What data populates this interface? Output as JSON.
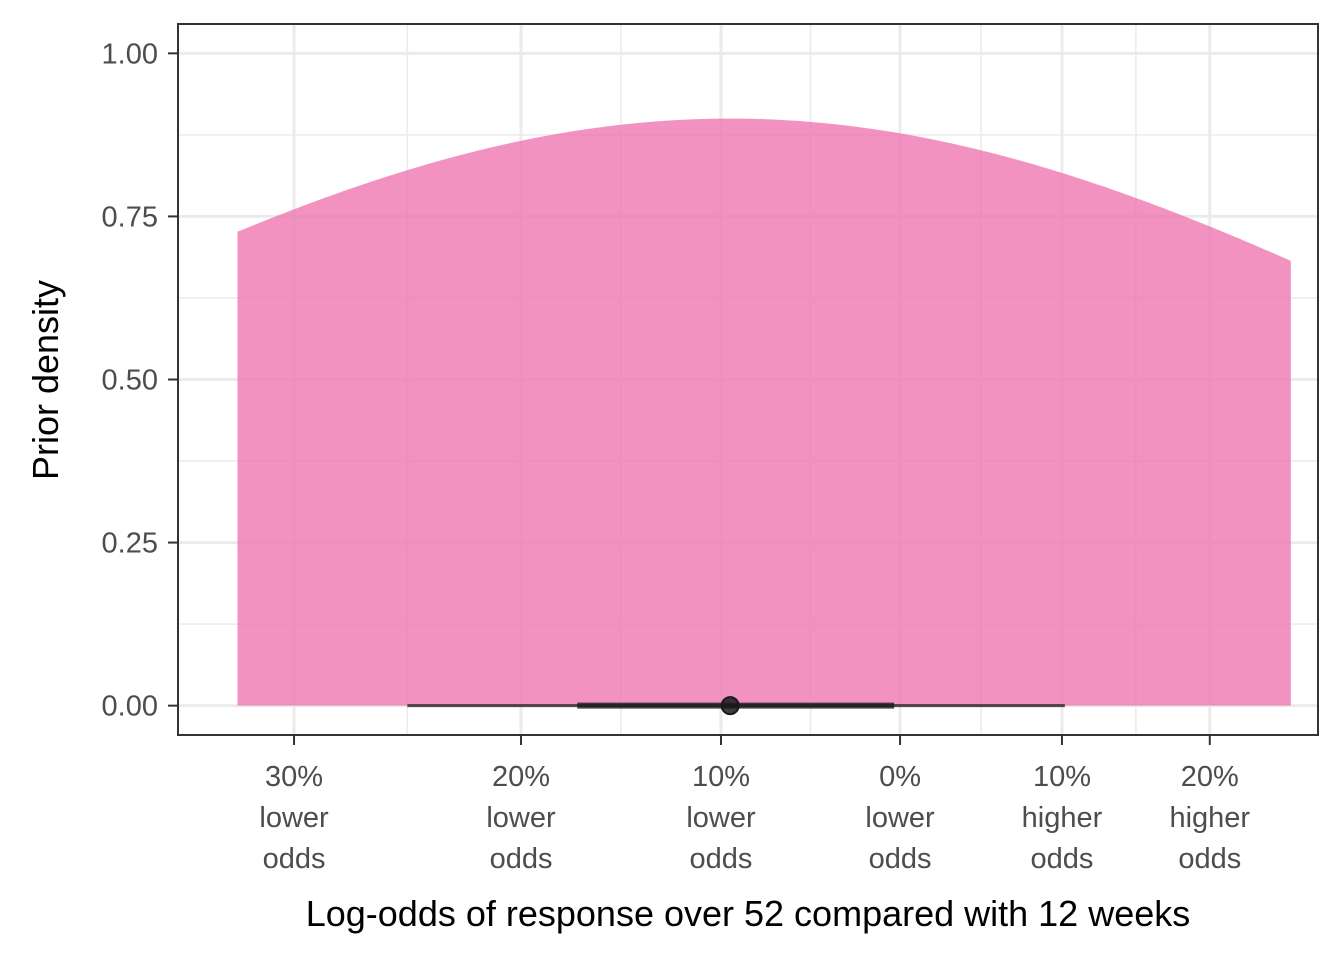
{
  "chart_data": {
    "type": "area",
    "xlabel": "Log-odds of response over 52 compared with 12 weeks",
    "ylabel": "Prior density",
    "ylim": [
      -0.045,
      1.045
    ],
    "xlim": [
      -0.425,
      0.246
    ],
    "y_ticks": [
      {
        "value": 0.0,
        "label": "0.00"
      },
      {
        "value": 0.25,
        "label": "0.25"
      },
      {
        "value": 0.5,
        "label": "0.50"
      },
      {
        "value": 0.75,
        "label": "0.75"
      },
      {
        "value": 1.0,
        "label": "1.00"
      }
    ],
    "x_ticks": [
      {
        "value": -0.3567,
        "lines": [
          "30%",
          "lower",
          "odds"
        ]
      },
      {
        "value": -0.2231,
        "lines": [
          "20%",
          "lower",
          "odds"
        ]
      },
      {
        "value": -0.1054,
        "lines": [
          "10%",
          "lower",
          "odds"
        ]
      },
      {
        "value": 0.0,
        "lines": [
          "0%",
          "lower",
          "odds"
        ]
      },
      {
        "value": 0.0953,
        "lines": [
          "10%",
          "higher",
          "odds"
        ]
      },
      {
        "value": 0.1823,
        "lines": [
          "20%",
          "higher",
          "odds"
        ]
      }
    ],
    "x_minor_ticks": [
      -0.29,
      -0.1643,
      -0.0527,
      0.0477,
      0.1388
    ],
    "y_minor_ticks": [
      0.125,
      0.375,
      0.625,
      0.875
    ],
    "density": {
      "distribution": "normal",
      "mean": -0.1,
      "sd": 0.443,
      "x_from": -0.39,
      "x_to": 0.23,
      "scale": 0.9,
      "fill": "#ee77b2",
      "opacity": 0.8
    },
    "point_interval": {
      "point": -0.1,
      "inner": [
        -0.19,
        -0.0035
      ],
      "outer": [
        -0.29,
        0.097
      ],
      "color": "#1a1a1a"
    },
    "grid": true,
    "legend": "none"
  }
}
